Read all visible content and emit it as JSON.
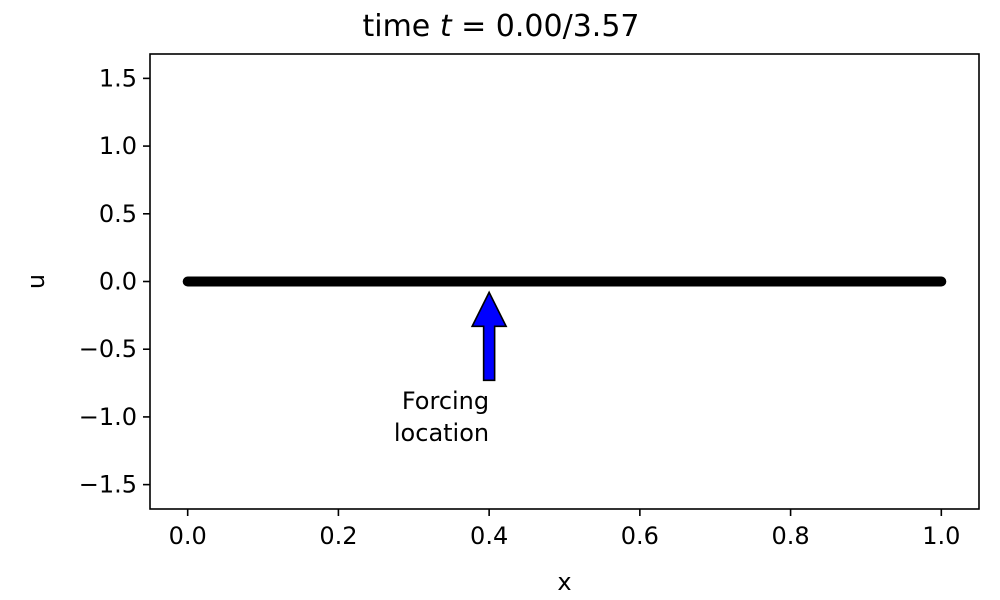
{
  "chart_data": {
    "type": "line",
    "title": {
      "prefix": "time ",
      "var": "t",
      "suffix": " = 0.00/3.57"
    },
    "xlabel": "x",
    "ylabel": "u",
    "xlim": [
      -0.05,
      1.05
    ],
    "ylim": [
      -1.68,
      1.68
    ],
    "xticks": [
      0.0,
      0.2,
      0.4,
      0.6,
      0.8,
      1.0
    ],
    "xtick_labels": [
      "0.0",
      "0.2",
      "0.4",
      "0.6",
      "0.8",
      "1.0"
    ],
    "yticks": [
      1.5,
      1.0,
      0.5,
      0.0,
      -0.5,
      -1.0,
      -1.5
    ],
    "ytick_labels": [
      "1.5",
      "1.0",
      "0.5",
      "0.0",
      "−0.5",
      "−1.0",
      "−1.5"
    ],
    "grid": false,
    "series": [
      {
        "x": [
          0.0,
          0.1,
          0.2,
          0.3,
          0.4,
          0.5,
          0.6,
          0.7,
          0.8,
          0.9,
          1.0
        ],
        "values": [
          0,
          0,
          0,
          0,
          0,
          0,
          0,
          0,
          0,
          0,
          0
        ],
        "color": "#000000"
      }
    ],
    "annotation": {
      "lines": [
        "Forcing",
        "location"
      ],
      "x": 0.4,
      "arrow_tip_y": -0.08,
      "arrow_tail_y": -0.73,
      "text_y": -1.0,
      "arrow_color": "#0000ff"
    }
  }
}
